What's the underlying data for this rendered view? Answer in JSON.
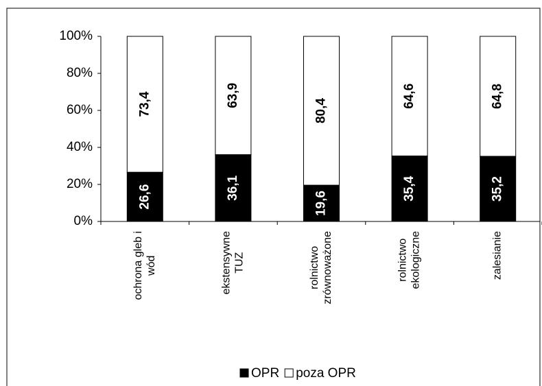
{
  "chart_data": {
    "type": "stacked_bar",
    "categories": [
      "ochrona gleb i\nwód",
      "ekstensywne\nTUZ",
      "rolnictwo\nzrównoważone",
      "rolnictwo\nekologiczne",
      "zalesianie"
    ],
    "series": [
      {
        "name": "OPR",
        "color": "#000000",
        "values": [
          26.6,
          36.1,
          19.6,
          35.4,
          35.2
        ],
        "value_labels": [
          "26,6",
          "36,1",
          "19,6",
          "35,4",
          "35,2"
        ]
      },
      {
        "name": "poza OPR",
        "color": "#ffffff",
        "values": [
          73.4,
          63.9,
          80.4,
          64.6,
          64.8
        ],
        "value_labels": [
          "73,4",
          "63,9",
          "80,4",
          "64,6",
          "64,8"
        ]
      }
    ],
    "ylim": [
      0,
      100
    ],
    "yticks": [
      {
        "value": 0,
        "label": "0%"
      },
      {
        "value": 20,
        "label": "20%"
      },
      {
        "value": 40,
        "label": "40%"
      },
      {
        "value": 60,
        "label": "60%"
      },
      {
        "value": 80,
        "label": "80%"
      },
      {
        "value": 100,
        "label": "100%"
      }
    ],
    "legend": "bottom"
  }
}
